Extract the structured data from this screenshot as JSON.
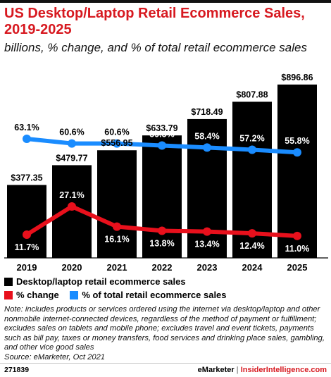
{
  "header": {
    "title": "US Desktop/Laptop Retail Ecommerce Sales, 2019-2025",
    "subtitle": "billions, % change, and % of total retail ecommerce sales"
  },
  "chart_data": {
    "type": "bar",
    "categories": [
      "2019",
      "2020",
      "2021",
      "2022",
      "2023",
      "2024",
      "2025"
    ],
    "series": [
      {
        "name": "Desktop/laptop retail ecommerce sales",
        "type": "bar",
        "color": "#000000",
        "values": [
          377.35,
          479.77,
          556.95,
          633.79,
          718.49,
          807.88,
          896.86
        ],
        "labels": [
          "$377.35",
          "$479.77",
          "$556.95",
          "$633.79",
          "$718.49",
          "$807.88",
          "$896.86"
        ]
      },
      {
        "name": "% change",
        "type": "line",
        "color": "#e8101c",
        "values": [
          11.7,
          27.1,
          16.1,
          13.8,
          13.4,
          12.4,
          11.0
        ],
        "labels": [
          "11.7%",
          "27.1%",
          "16.1%",
          "13.8%",
          "13.4%",
          "12.4%",
          "11.0%"
        ]
      },
      {
        "name": "% of total retail ecommerce sales",
        "type": "line",
        "color": "#1a8cff",
        "values": [
          63.1,
          60.6,
          60.6,
          59.5,
          58.4,
          57.2,
          55.8
        ],
        "labels": [
          "63.1%",
          "60.6%",
          "60.6%",
          "59.5%",
          "58.4%",
          "57.2%",
          "55.8%"
        ]
      }
    ],
    "legend_position": "bottom-left"
  },
  "legend": {
    "bars_label": "Desktop/laptop retail ecommerce sales",
    "change_label": "% change",
    "share_label": "% of total retail ecommerce sales"
  },
  "note": "Note: includes products or services ordered using the internet via desktop/laptop and other nonmobile internet-connected devices, regardless of the method of payment or fulfillment; excludes sales on tablets and mobile phone; excludes travel and event tickets, payments such as bill pay, taxes or money transfers, food services and drinking place sales, gambling, and other vice good sales",
  "source": "Source: eMarketer, Oct 2021",
  "footer": {
    "chart_id": "271839",
    "brand_left": "eMarketer",
    "separator": "|",
    "brand_right": "InsiderIntelligence.com"
  }
}
